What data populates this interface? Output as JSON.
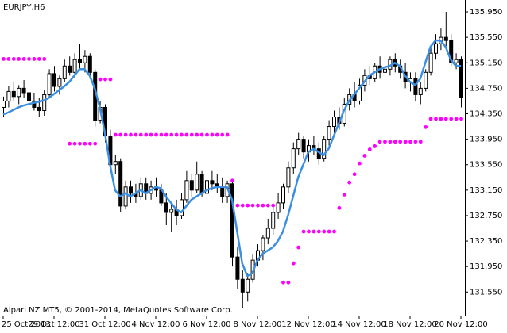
{
  "chart_data": {
    "type": "candlestick",
    "title": "EURJPY,H6",
    "footer": "Alpari NZ MT5, © 2001-2014, MetaQuotes Software Corp.",
    "categories": [
      "25 Oct 2013",
      null,
      null,
      null,
      null,
      null,
      null,
      null,
      null,
      null,
      "29 Oct 12:00",
      null,
      null,
      null,
      null,
      null,
      null,
      null,
      null,
      null,
      "31 Oct 12:00",
      null,
      null,
      null,
      null,
      null,
      null,
      null,
      null,
      null,
      "4 Nov 12:00",
      null,
      null,
      null,
      null,
      null,
      null,
      null,
      null,
      null,
      "6 Nov 12:00",
      null,
      null,
      null,
      null,
      null,
      null,
      null,
      null,
      null,
      "8 Nov 12:00",
      null,
      null,
      null,
      null,
      null,
      null,
      null,
      null,
      null,
      "12 Nov 12:00",
      null,
      null,
      null,
      null,
      null,
      null,
      null,
      null,
      null,
      "14 Nov 12:00",
      null,
      null,
      null,
      null,
      null,
      null,
      null,
      null,
      null,
      "18 Nov 12:00",
      null,
      null,
      null,
      null,
      null,
      null,
      null,
      null,
      null,
      "20 Nov 12:00"
    ],
    "up_color": "#ffffff",
    "down_color": "#000000",
    "wick_color": "#000000",
    "ohlc": {
      "open": [
        134.45,
        134.55,
        134.7,
        134.62,
        134.75,
        134.68,
        134.55,
        134.45,
        134.4,
        134.65,
        134.98,
        134.78,
        134.9,
        135.1,
        135.0,
        135.2,
        135.15,
        135.25,
        135.0,
        134.25,
        134.45,
        134.0,
        133.55,
        133.6,
        132.9,
        133.2,
        133.1,
        133.05,
        133.25,
        133.1,
        133.2,
        133.15,
        132.95,
        132.8,
        132.85,
        132.75,
        133.0,
        133.3,
        133.15,
        133.4,
        133.1,
        133.3,
        133.25,
        133.2,
        133.05,
        133.25,
        132.1,
        131.75,
        131.55,
        131.75,
        132.05,
        132.2,
        132.4,
        132.55,
        132.8,
        132.95,
        133.2,
        133.5,
        133.8,
        133.95,
        133.75,
        133.85,
        133.8,
        133.65,
        133.95,
        134.15,
        134.3,
        134.2,
        134.5,
        134.65,
        134.55,
        134.8,
        134.95,
        134.9,
        135.1,
        135.0,
        135.05,
        135.2,
        135.1,
        135.0,
        134.85,
        134.9,
        134.65,
        134.75,
        135.0,
        135.3,
        135.45,
        135.55,
        135.5,
        135.15,
        135.2
      ],
      "high": [
        134.62,
        134.78,
        134.85,
        134.8,
        134.88,
        134.78,
        134.68,
        134.6,
        134.72,
        135.05,
        135.1,
        134.95,
        135.2,
        135.25,
        135.3,
        135.45,
        135.35,
        135.3,
        135.05,
        134.55,
        134.5,
        134.1,
        133.7,
        133.65,
        133.3,
        133.3,
        133.25,
        133.35,
        133.35,
        133.3,
        133.35,
        133.25,
        133.1,
        132.95,
        133.0,
        133.1,
        133.45,
        133.4,
        133.6,
        133.45,
        133.4,
        133.45,
        133.4,
        133.35,
        133.3,
        133.3,
        132.25,
        131.9,
        131.85,
        132.15,
        132.3,
        132.45,
        132.7,
        132.9,
        133.1,
        133.25,
        133.6,
        133.9,
        134.05,
        134.0,
        133.95,
        134.0,
        133.9,
        134.0,
        134.25,
        134.4,
        134.45,
        134.6,
        134.75,
        134.85,
        134.9,
        135.05,
        135.1,
        135.15,
        135.25,
        135.15,
        135.25,
        135.3,
        135.2,
        135.15,
        135.0,
        135.0,
        134.85,
        135.05,
        135.4,
        135.6,
        135.7,
        135.95,
        135.6,
        135.3,
        135.25
      ],
      "low": [
        134.3,
        134.45,
        134.55,
        134.5,
        134.6,
        134.48,
        134.4,
        134.3,
        134.32,
        134.6,
        134.7,
        134.65,
        134.85,
        134.95,
        134.92,
        135.05,
        135.0,
        134.9,
        134.15,
        134.2,
        133.9,
        133.45,
        133.4,
        132.8,
        132.85,
        132.95,
        132.95,
        133.0,
        133.0,
        133.0,
        133.05,
        132.9,
        132.6,
        132.5,
        132.6,
        132.7,
        132.95,
        133.05,
        133.1,
        133.05,
        133.0,
        133.15,
        133.1,
        132.95,
        132.95,
        131.95,
        131.6,
        131.3,
        131.4,
        131.7,
        131.95,
        132.05,
        132.3,
        132.45,
        132.7,
        132.85,
        133.1,
        133.4,
        133.7,
        133.65,
        133.6,
        133.7,
        133.55,
        133.6,
        133.85,
        134.05,
        134.1,
        134.15,
        134.4,
        134.45,
        134.5,
        134.7,
        134.8,
        134.85,
        134.9,
        134.85,
        134.95,
        135.0,
        134.9,
        134.75,
        134.7,
        134.55,
        134.5,
        134.7,
        134.95,
        135.2,
        135.35,
        135.4,
        135.1,
        135.05,
        134.45
      ],
      "close": [
        134.55,
        134.7,
        134.62,
        134.75,
        134.68,
        134.55,
        134.45,
        134.4,
        134.65,
        134.98,
        134.78,
        134.9,
        135.1,
        135.0,
        135.2,
        135.15,
        135.25,
        135.0,
        134.25,
        134.45,
        134.0,
        133.55,
        133.6,
        132.9,
        133.2,
        133.1,
        133.05,
        133.25,
        133.1,
        133.2,
        133.15,
        132.95,
        132.8,
        132.85,
        132.75,
        133.0,
        133.3,
        133.15,
        133.4,
        133.1,
        133.3,
        133.25,
        133.2,
        133.05,
        133.25,
        132.1,
        131.75,
        131.55,
        131.75,
        132.05,
        132.2,
        132.4,
        132.55,
        132.8,
        132.95,
        133.2,
        133.5,
        133.8,
        133.95,
        133.75,
        133.85,
        133.8,
        133.65,
        133.95,
        134.15,
        134.3,
        134.2,
        134.5,
        134.65,
        134.55,
        134.8,
        134.95,
        134.9,
        135.1,
        135.0,
        135.05,
        135.2,
        135.1,
        135.0,
        134.85,
        134.9,
        134.65,
        134.75,
        135.0,
        135.3,
        135.45,
        135.55,
        135.5,
        135.15,
        135.2,
        134.6
      ]
    },
    "ma": {
      "color": "#3a8fe3",
      "values": [
        134.34,
        134.37,
        134.41,
        134.45,
        134.48,
        134.5,
        134.52,
        134.54,
        134.56,
        134.6,
        134.66,
        134.72,
        134.78,
        134.85,
        134.95,
        135.05,
        135.05,
        134.95,
        134.75,
        134.45,
        134.05,
        133.55,
        133.15,
        133.05,
        133.1,
        133.05,
        133.1,
        133.15,
        133.1,
        133.15,
        133.2,
        133.18,
        133.05,
        132.95,
        132.85,
        132.8,
        132.9,
        133.0,
        133.05,
        133.1,
        133.15,
        133.18,
        133.2,
        133.2,
        133.2,
        133.0,
        132.5,
        132.0,
        131.8,
        131.85,
        132.05,
        132.15,
        132.2,
        132.25,
        132.35,
        132.5,
        132.75,
        133.05,
        133.35,
        133.55,
        133.75,
        133.8,
        133.75,
        133.7,
        133.8,
        134.0,
        134.2,
        134.4,
        134.55,
        134.65,
        134.75,
        134.85,
        134.95,
        135.0,
        135.05,
        135.08,
        135.1,
        135.15,
        135.1,
        134.95,
        134.85,
        134.8,
        134.9,
        135.15,
        135.4,
        135.5,
        135.5,
        135.4,
        135.2,
        135.1,
        135.1
      ]
    },
    "dots": {
      "color": "#ff00ff",
      "values": [
        135.21,
        135.21,
        135.21,
        135.21,
        135.21,
        135.21,
        135.21,
        135.21,
        135.21,
        null,
        null,
        null,
        null,
        133.88,
        133.88,
        133.88,
        133.88,
        133.88,
        133.88,
        134.89,
        134.89,
        134.89,
        134.02,
        134.02,
        134.02,
        134.02,
        134.02,
        134.02,
        134.02,
        134.02,
        134.02,
        134.02,
        134.02,
        134.02,
        134.02,
        134.02,
        134.02,
        134.02,
        134.02,
        134.02,
        134.02,
        134.02,
        134.02,
        134.02,
        134.02,
        133.3,
        132.91,
        132.91,
        132.91,
        132.91,
        132.91,
        132.91,
        132.91,
        132.91,
        null,
        131.7,
        131.7,
        132.0,
        132.25,
        132.5,
        132.5,
        132.5,
        132.5,
        132.5,
        132.5,
        132.5,
        132.87,
        133.08,
        133.27,
        133.4,
        133.57,
        133.69,
        133.79,
        133.84,
        133.91,
        133.91,
        133.91,
        133.91,
        133.91,
        133.91,
        133.91,
        133.91,
        133.91,
        134.14,
        134.27,
        134.27,
        134.27,
        134.27,
        134.27,
        134.27,
        134.27
      ]
    },
    "ylim": [
      131.18,
      136.1
    ],
    "yticks": [
      {
        "value": 131.55,
        "label": "131.550"
      },
      {
        "value": 131.95,
        "label": "131.950"
      },
      {
        "value": 132.35,
        "label": "132.350"
      },
      {
        "value": 132.75,
        "label": "132.750"
      },
      {
        "value": 133.15,
        "label": "133.150"
      },
      {
        "value": 133.55,
        "label": "133.550"
      },
      {
        "value": 133.95,
        "label": "133.950"
      },
      {
        "value": 134.35,
        "label": "134.350"
      },
      {
        "value": 134.75,
        "label": "134.750"
      },
      {
        "value": 135.15,
        "label": "135.150"
      },
      {
        "value": 135.55,
        "label": "135.550"
      },
      {
        "value": 135.95,
        "label": "135.950"
      }
    ]
  }
}
